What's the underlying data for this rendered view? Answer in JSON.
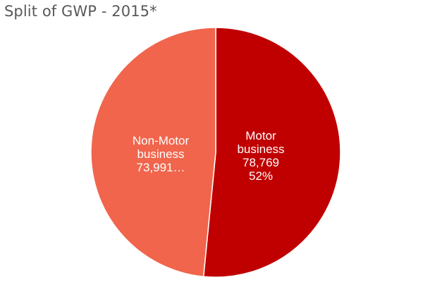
{
  "chart_data": {
    "type": "pie",
    "title": "Split of GWP - 2015*",
    "slices": [
      {
        "name": "Motor business",
        "value": 78769,
        "value_label": "78,769",
        "percent_label": "52%",
        "color": "#C00000",
        "label_lines": [
          "Motor",
          "business",
          "78,769",
          "52%"
        ]
      },
      {
        "name": "Non-Motor business",
        "value": 73991,
        "value_label": "73,991…",
        "percent_label": "",
        "color": "#F0654C",
        "label_lines": [
          "Non-Motor",
          "business",
          "73,991…"
        ]
      }
    ],
    "start_angle": "top, clockwise"
  }
}
